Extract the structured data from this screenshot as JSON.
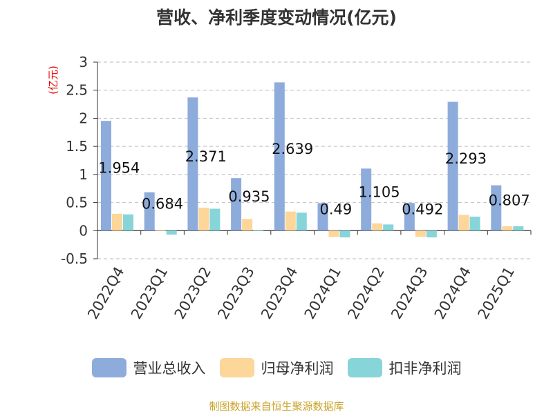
{
  "chart_data": {
    "type": "bar",
    "title": "营收、净利季度变动情况(亿元)",
    "ylabel": "(亿元)",
    "ylim": [
      -0.5,
      3
    ],
    "yticks": [
      "3",
      "2.5",
      "2",
      "1.5",
      "1",
      "0.5",
      "0",
      "-0.5"
    ],
    "categories": [
      "2022Q4",
      "2023Q1",
      "2023Q2",
      "2023Q3",
      "2023Q4",
      "2024Q1",
      "2024Q2",
      "2024Q3",
      "2024Q4",
      "2025Q1"
    ],
    "series": [
      {
        "name": "营业总收入",
        "color": "#8eacdb",
        "values": [
          1.954,
          0.684,
          2.371,
          0.935,
          2.639,
          0.49,
          1.105,
          0.492,
          2.293,
          0.807
        ]
      },
      {
        "name": "归母净利润",
        "color": "#fdd699",
        "values": [
          0.3,
          0.01,
          0.41,
          0.21,
          0.34,
          -0.11,
          0.13,
          -0.11,
          0.28,
          0.08
        ]
      },
      {
        "name": "扣非净利润",
        "color": "#87d5d8",
        "values": [
          0.29,
          -0.07,
          0.39,
          0.01,
          0.32,
          -0.12,
          0.11,
          -0.12,
          0.25,
          0.08
        ]
      }
    ],
    "data_labels": [
      "1.954",
      "0.684",
      "2.371",
      "0.935",
      "2.639",
      "0.49",
      "1.105",
      "0.492",
      "2.293",
      "0.807"
    ],
    "grid": true,
    "legend_position": "bottom"
  },
  "source": "制图数据来自恒生聚源数据库"
}
